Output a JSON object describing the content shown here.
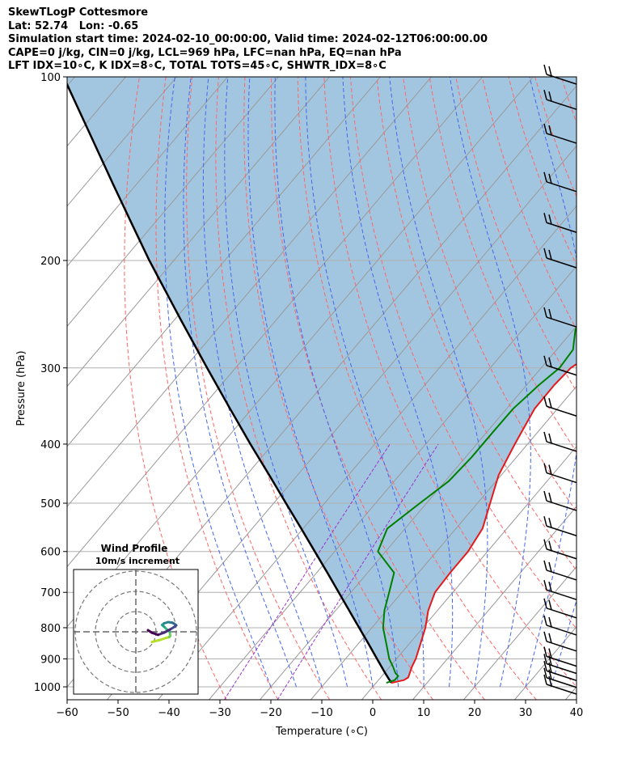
{
  "header": {
    "line1": "SkewTLogP Cottesmore",
    "line2": "Lat: 52.74   Lon: -0.65",
    "line3": "Simulation start time: 2024-02-10_00:00:00, Valid time: 2024-02-12T06:00:00.00",
    "line4": "CAPE=0 j/kg, CIN=0 j/kg, LCL=969 hPa, LFC=nan hPa, EQ=nan hPa",
    "line5": "LFT IDX=10∘C, K IDX=8∘C, TOTAL TOTS=45∘C, SHWTR_IDX=8∘C"
  },
  "chart_data": {
    "type": "line",
    "subtype": "skew-t log-p",
    "xlabel": "Temperature (∘C)",
    "ylabel": "Pressure (hPa)",
    "xlim": [
      -60,
      40
    ],
    "ylim": [
      1050,
      100
    ],
    "yscale": "log",
    "x_ticks": [
      -60,
      -50,
      -40,
      -30,
      -20,
      -10,
      0,
      10,
      20,
      30,
      40
    ],
    "y_ticks": [
      1000,
      900,
      800,
      700,
      600,
      500,
      400,
      300,
      200,
      100
    ],
    "grid": true,
    "colors": {
      "temperature": "#e41a1c",
      "dewpoint": "#008000",
      "parcel": "#000000",
      "shading": "#a3c6e0",
      "dry_adiabats": "#ff6666",
      "moist_adiabats": "#4466ee",
      "mixing_ratio": "#9933cc",
      "isotherms": "#999999"
    },
    "series": [
      {
        "key": "temperature",
        "p": [
          985,
          975,
          965,
          950,
          925,
          900,
          850,
          800,
          750,
          700,
          650,
          600,
          550,
          500,
          450,
          400,
          350,
          320,
          300,
          280,
          260,
          240,
          220,
          200,
          175,
          150,
          135,
          120,
          110,
          100
        ],
        "t": [
          3,
          5,
          5.4,
          5,
          4.3,
          3.8,
          2.2,
          0.5,
          -1.8,
          -3.5,
          -3.8,
          -3.8,
          -4.8,
          -7.5,
          -10.5,
          -12.5,
          -14.5,
          -14.6,
          -14.2,
          -11.8,
          -7.6,
          -4.5,
          -3.3,
          -1.8,
          1.0,
          3.8,
          7.5,
          12,
          14.6,
          17.5
        ]
      },
      {
        "key": "dewpoint",
        "p": [
          985,
          975,
          960,
          950,
          925,
          900,
          850,
          800,
          750,
          700,
          650,
          600,
          550,
          500,
          460,
          420,
          380,
          350,
          320,
          300,
          280,
          260,
          240,
          220,
          200,
          185,
          170,
          150,
          130,
          100
        ],
        "t": [
          2,
          3.2,
          3.2,
          2.2,
          0.5,
          -1.4,
          -4.5,
          -7.8,
          -10.4,
          -12.5,
          -14.8,
          -21.5,
          -23.5,
          -21.3,
          -19.3,
          -18.8,
          -18.8,
          -18.7,
          -17.6,
          -16.4,
          -16.8,
          -19.6,
          -21.4,
          -24.0,
          -27.4,
          -26.1,
          -25.1,
          -22.9,
          -19.8,
          -11.4
        ]
      },
      {
        "key": "parcel",
        "p": [
          985,
          969,
          950,
          900,
          850,
          800,
          750,
          700,
          650,
          600,
          550,
          500,
          450,
          400,
          350,
          300,
          250,
          200,
          175,
          150,
          125,
          100
        ],
        "t": [
          3,
          1.7,
          0.2,
          -3.8,
          -8,
          -12.5,
          -17.3,
          -22.4,
          -27.9,
          -33.9,
          -40.4,
          -47.6,
          -55.5,
          -64.4,
          -74.3,
          -85.6,
          -98.8,
          -114.8,
          -124,
          -134.6,
          -147,
          -162.2
        ]
      }
    ],
    "wind_barbs": [
      {
        "p": 1000
      },
      {
        "p": 975
      },
      {
        "p": 950
      },
      {
        "p": 925
      },
      {
        "p": 900
      },
      {
        "p": 850
      },
      {
        "p": 800
      },
      {
        "p": 750
      },
      {
        "p": 700
      },
      {
        "p": 650
      },
      {
        "p": 600
      },
      {
        "p": 550
      },
      {
        "p": 500
      },
      {
        "p": 450
      },
      {
        "p": 400
      },
      {
        "p": 350
      },
      {
        "p": 300
      },
      {
        "p": 250
      },
      {
        "p": 200
      },
      {
        "p": 175
      },
      {
        "p": 150
      },
      {
        "p": 125
      },
      {
        "p": 110
      },
      {
        "p": 100
      }
    ],
    "hodograph": {
      "title": "Wind Profile",
      "subtitle": "10m/s increment",
      "rings_ms": [
        10,
        20,
        30
      ],
      "u": [
        8,
        12,
        15,
        16.5,
        17,
        16.8,
        15,
        14,
        13,
        14,
        16,
        18,
        19,
        20,
        19,
        17,
        14,
        11,
        8,
        6
      ],
      "v": [
        -5,
        -4,
        -3,
        -2.6,
        -2,
        0,
        1.5,
        2.5,
        3.4,
        4.2,
        4.8,
        4.5,
        4,
        3.2,
        2.4,
        1.2,
        -0.4,
        -1.5,
        -0.5,
        0.8
      ]
    }
  }
}
